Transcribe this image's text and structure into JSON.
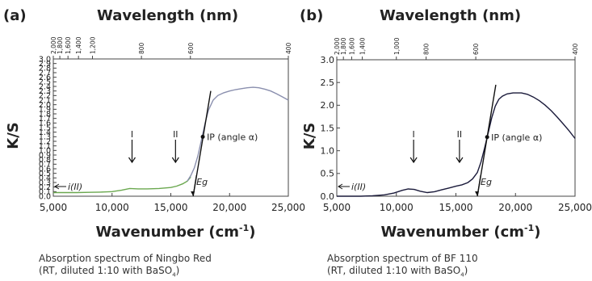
{
  "chart_data": [
    {
      "type": "line",
      "panel": "(a)",
      "top_axis_label": "Wavelength (nm)",
      "top_ticks": [
        {
          "label": "2,000",
          "wn": 5000
        },
        {
          "label": "1,800",
          "wn": 5556
        },
        {
          "label": "1,600",
          "wn": 6250
        },
        {
          "label": "1,400",
          "wn": 7143
        },
        {
          "label": "1,200",
          "wn": 8333
        },
        {
          "label": "800",
          "wn": 12500
        },
        {
          "label": "600",
          "wn": 16667
        },
        {
          "label": "400",
          "wn": 25000
        }
      ],
      "xlabel": "Wavenumber (cm",
      "xlabel_sup": "-1",
      "xlabel_end": ")",
      "ylabel": "K/S",
      "xlim": [
        5000,
        25000
      ],
      "ylim": [
        0,
        3.0
      ],
      "x_ticks": [
        5000,
        10000,
        15000,
        20000,
        25000
      ],
      "x_tick_labels": [
        "5,000",
        "10,000",
        "15,000",
        "20,000",
        "25,000"
      ],
      "y_ticks": [
        0,
        0.1,
        0.2,
        0.3,
        0.4,
        0.5,
        0.6,
        0.7,
        0.8,
        0.9,
        1.0,
        1.1,
        1.2,
        1.3,
        1.4,
        1.5,
        1.6,
        1.7,
        1.8,
        1.9,
        2.0,
        2.1,
        2.2,
        2.3,
        2.4,
        2.5,
        2.6,
        2.7,
        2.8,
        2.9,
        3.0
      ],
      "y_tick_labels": [
        "0.0",
        "0.1",
        "0.2",
        "0.3",
        "0.4",
        "0.5",
        "0.6",
        "0.7",
        "0.8",
        "0.9",
        "1.0",
        "1.1",
        "1.2",
        "1.3",
        "1.4",
        "1.5",
        "1.6",
        "1.7",
        "1.8",
        "1.9",
        "2.0",
        "2.1",
        "2.2",
        "2.3",
        "2.4",
        "2.5",
        "2.6",
        "2.7",
        "2.8",
        "2.9",
        "3.0"
      ],
      "series": [
        {
          "color": "#6aa84f",
          "x": [
            5000,
            6000,
            7000,
            8000,
            9000,
            10000,
            10800,
            11500,
            12200,
            13000,
            14000,
            15000,
            15500,
            16000,
            16400,
            16700
          ],
          "y": [
            0.08,
            0.08,
            0.08,
            0.085,
            0.09,
            0.1,
            0.13,
            0.17,
            0.16,
            0.16,
            0.17,
            0.19,
            0.22,
            0.27,
            0.33,
            0.42
          ]
        },
        {
          "color": "#8a8fae",
          "x": [
            16400,
            16700,
            17000,
            17300,
            17600,
            17900,
            18200,
            18600,
            19000,
            19500,
            20000,
            20500,
            21000,
            21500,
            22000,
            22500,
            23000,
            23500,
            24000,
            24500,
            25000
          ],
          "y": [
            0.33,
            0.45,
            0.62,
            0.88,
            1.22,
            1.58,
            1.88,
            2.1,
            2.2,
            2.26,
            2.3,
            2.33,
            2.35,
            2.37,
            2.38,
            2.37,
            2.34,
            2.3,
            2.24,
            2.17,
            2.1
          ]
        }
      ],
      "tangent": {
        "x": [
          16900,
          18400
        ],
        "y": [
          0.0,
          2.3
        ]
      },
      "ip_point": {
        "x": 17720,
        "y": 1.3
      },
      "annotations": {
        "ip": "IP (angle α)",
        "eg": "Eg",
        "band1": "I",
        "band2": "II",
        "ilabel": "i(II)",
        "band1_x": 11700,
        "band2_x": 15400,
        "eg_x": 16900
      },
      "caption": [
        "Absorption spectrum of Ningbo Red",
        "(RT, diluted 1:10 with BaSO",
        ")"
      ],
      "caption_sub": "4"
    },
    {
      "type": "line",
      "panel": "(b)",
      "top_axis_label": "Wavelength (nm)",
      "top_ticks": [
        {
          "label": "2,000",
          "wn": 5000
        },
        {
          "label": "1,800",
          "wn": 5556
        },
        {
          "label": "1,600",
          "wn": 6250
        },
        {
          "label": "1,400",
          "wn": 7143
        },
        {
          "label": "1,000",
          "wn": 10000
        },
        {
          "label": "800",
          "wn": 12500
        },
        {
          "label": "600",
          "wn": 16667
        },
        {
          "label": "400",
          "wn": 25000
        }
      ],
      "xlabel": "Wavenumber (cm",
      "xlabel_sup": "-1",
      "xlabel_end": ")",
      "ylabel": "K/S",
      "xlim": [
        5000,
        25000
      ],
      "ylim": [
        0,
        3.0
      ],
      "x_ticks": [
        5000,
        10000,
        15000,
        20000,
        25000
      ],
      "x_tick_labels": [
        "5,000",
        "10,000",
        "15,000",
        "20,000",
        "25,000"
      ],
      "y_ticks": [
        0,
        0.5,
        1.0,
        1.5,
        2.0,
        2.5,
        3.0
      ],
      "y_tick_labels": [
        "0.0",
        "0.5",
        "1.0",
        "1.5",
        "2.0",
        "2.5",
        "3.0"
      ],
      "series": [
        {
          "color": "#1a1a3a",
          "x": [
            5000,
            6000,
            7000,
            8000,
            9000,
            9800,
            10500,
            11000,
            11500,
            12000,
            12600,
            13200,
            13800,
            14400,
            15000,
            15500,
            16000,
            16400,
            16800,
            17100,
            17400,
            17700,
            18000,
            18300,
            18600,
            18900,
            19300,
            19800,
            20500,
            21000,
            21500,
            22000,
            22500,
            23000,
            23500,
            24000,
            24500,
            25000
          ],
          "y": [
            0.0,
            0.0,
            0.0,
            0.01,
            0.03,
            0.07,
            0.13,
            0.16,
            0.15,
            0.11,
            0.08,
            0.1,
            0.14,
            0.18,
            0.22,
            0.25,
            0.3,
            0.38,
            0.52,
            0.75,
            1.05,
            1.38,
            1.72,
            1.98,
            2.13,
            2.2,
            2.25,
            2.27,
            2.27,
            2.24,
            2.18,
            2.1,
            2.0,
            1.88,
            1.74,
            1.59,
            1.44,
            1.27
          ]
        }
      ],
      "tangent": {
        "x": [
          16800,
          18350
        ],
        "y": [
          0.0,
          2.45
        ]
      },
      "ip_point": {
        "x": 17620,
        "y": 1.3
      },
      "annotations": {
        "ip": "IP (angle α)",
        "eg": "Eg",
        "band1": "I",
        "band2": "II",
        "ilabel": "i(II)",
        "band1_x": 11450,
        "band2_x": 15300,
        "eg_x": 16800
      },
      "caption": [
        "Absorption spectrum of BF 110",
        "(RT, diluted 1:10 with BaSO",
        ")"
      ],
      "caption_sub": "4"
    }
  ]
}
